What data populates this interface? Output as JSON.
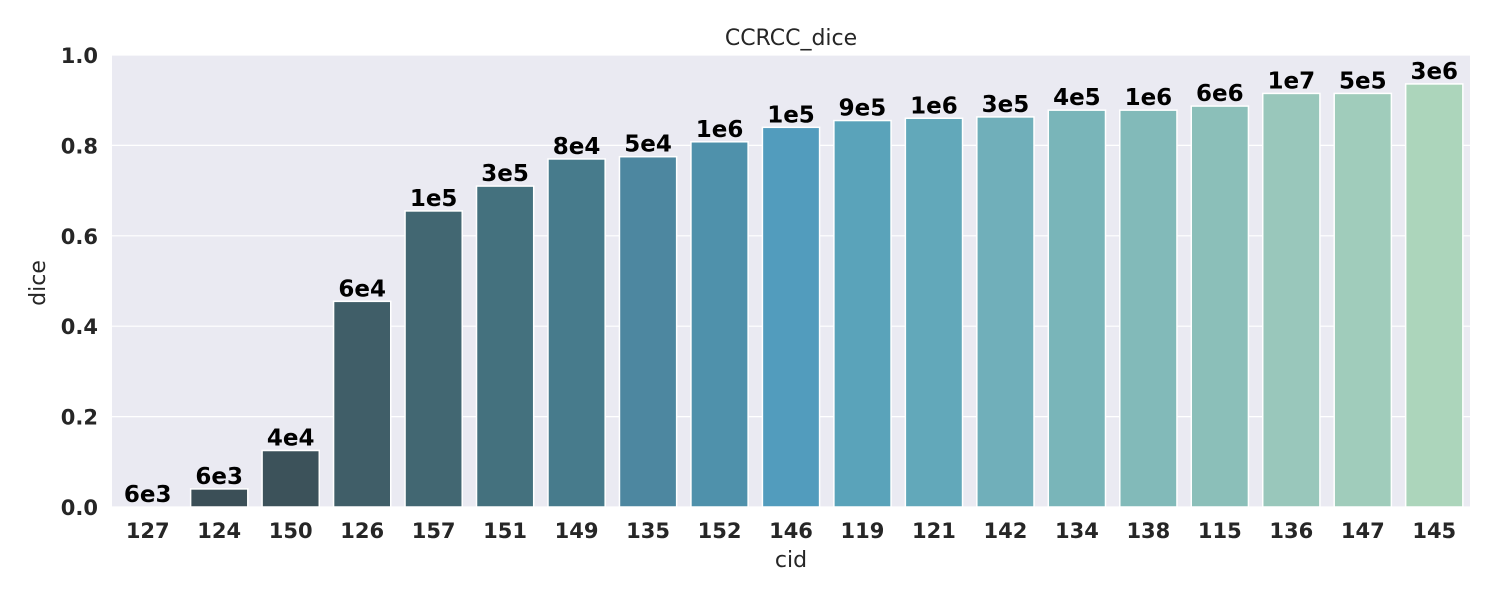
{
  "chart_data": {
    "type": "bar",
    "title": "CCRCC_dice",
    "xlabel": "cid",
    "ylabel": "dice",
    "ylim": [
      0,
      1.0
    ],
    "yticks": [
      "0.0",
      "0.2",
      "0.4",
      "0.6",
      "0.8",
      "1.0"
    ],
    "grid": true,
    "categories": [
      "127",
      "124",
      "150",
      "126",
      "157",
      "151",
      "149",
      "135",
      "152",
      "146",
      "119",
      "121",
      "142",
      "134",
      "138",
      "115",
      "136",
      "147",
      "145"
    ],
    "values": [
      0.0,
      0.04,
      0.125,
      0.455,
      0.655,
      0.71,
      0.77,
      0.775,
      0.808,
      0.84,
      0.855,
      0.86,
      0.863,
      0.878,
      0.878,
      0.887,
      0.915,
      0.915,
      0.936
    ],
    "labels": [
      "6e3",
      "6e3",
      "4e4",
      "6e4",
      "1e5",
      "3e5",
      "8e4",
      "5e4",
      "1e6",
      "1e5",
      "9e5",
      "1e6",
      "3e5",
      "4e5",
      "1e6",
      "6e6",
      "1e7",
      "5e5",
      "3e6"
    ],
    "colors": [
      "#3b4f57",
      "#3b4f57",
      "#3c525a",
      "#405e68",
      "#426772",
      "#44717e",
      "#477b8c",
      "#4d87a0",
      "#4f91ab",
      "#529cbd",
      "#5aa3ba",
      "#62a8ba",
      "#70afba",
      "#79b5b9",
      "#82bab9",
      "#8bbfb9",
      "#99c7bb",
      "#a0ccbb",
      "#acd5bb"
    ]
  }
}
